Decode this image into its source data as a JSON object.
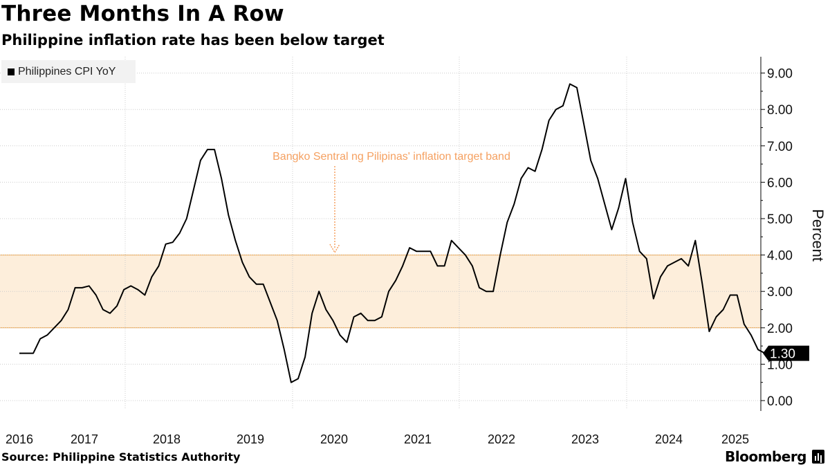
{
  "header": {
    "title": "Three Months In A Row",
    "subtitle": "Philippine inflation rate has been below target"
  },
  "footer": {
    "source": "Source: Philippine Statistics Authority",
    "brand": "Bloomberg"
  },
  "colors": {
    "line": "#000000",
    "band_fill": "#fdeedb",
    "band_edge": "#f0a040",
    "annotation": "#f5a060",
    "grid": "#cccccc"
  },
  "chart_data": {
    "type": "line",
    "title": "Three Months In A Row",
    "subtitle": "Philippine inflation rate has been below target",
    "ylabel": "Percent",
    "xlabel": "",
    "ylim": [
      0,
      9.5
    ],
    "yticks": [
      "0.00",
      "1.00",
      "2.00",
      "3.00",
      "4.00",
      "5.00",
      "6.00",
      "7.00",
      "8.00",
      "9.00"
    ],
    "xticks": [
      "2016",
      "2017",
      "2018",
      "2019",
      "2020",
      "2021",
      "2022",
      "2023",
      "2024",
      "2025"
    ],
    "grid": true,
    "legend_position": "top-left",
    "start": "2016-01",
    "series": [
      {
        "name": "Philippines CPI YoY",
        "values": [
          1.3,
          1.3,
          1.3,
          1.7,
          1.8,
          2.0,
          2.2,
          2.5,
          3.1,
          3.1,
          3.15,
          2.9,
          2.5,
          2.4,
          2.6,
          3.05,
          3.15,
          3.05,
          2.9,
          3.4,
          3.7,
          4.3,
          4.35,
          4.6,
          5.0,
          5.8,
          6.6,
          6.9,
          6.9,
          6.1,
          5.1,
          4.4,
          3.8,
          3.4,
          3.2,
          3.2,
          2.7,
          2.2,
          1.4,
          0.5,
          0.6,
          1.2,
          2.4,
          3.0,
          2.5,
          2.2,
          1.8,
          1.6,
          2.3,
          2.4,
          2.2,
          2.2,
          2.3,
          3.0,
          3.3,
          3.7,
          4.2,
          4.1,
          4.1,
          4.1,
          3.7,
          3.7,
          4.4,
          4.2,
          4.0,
          3.7,
          3.1,
          3.0,
          3.0,
          4.0,
          4.9,
          5.4,
          6.1,
          6.4,
          6.3,
          6.9,
          7.7,
          8.0,
          8.1,
          8.7,
          8.6,
          7.6,
          6.6,
          6.1,
          5.4,
          4.7,
          5.3,
          6.1,
          4.9,
          4.1,
          3.9,
          2.8,
          3.4,
          3.7,
          3.8,
          3.9,
          3.7,
          4.4,
          3.2,
          1.9,
          2.3,
          2.5,
          2.9,
          2.9,
          2.1,
          1.8,
          1.4,
          1.3
        ]
      }
    ],
    "target_band": {
      "low": 2.0,
      "high": 4.0,
      "label": "Bangko Sentral ng Pilipinas' inflation target band"
    },
    "last_value_label": "1.30"
  }
}
